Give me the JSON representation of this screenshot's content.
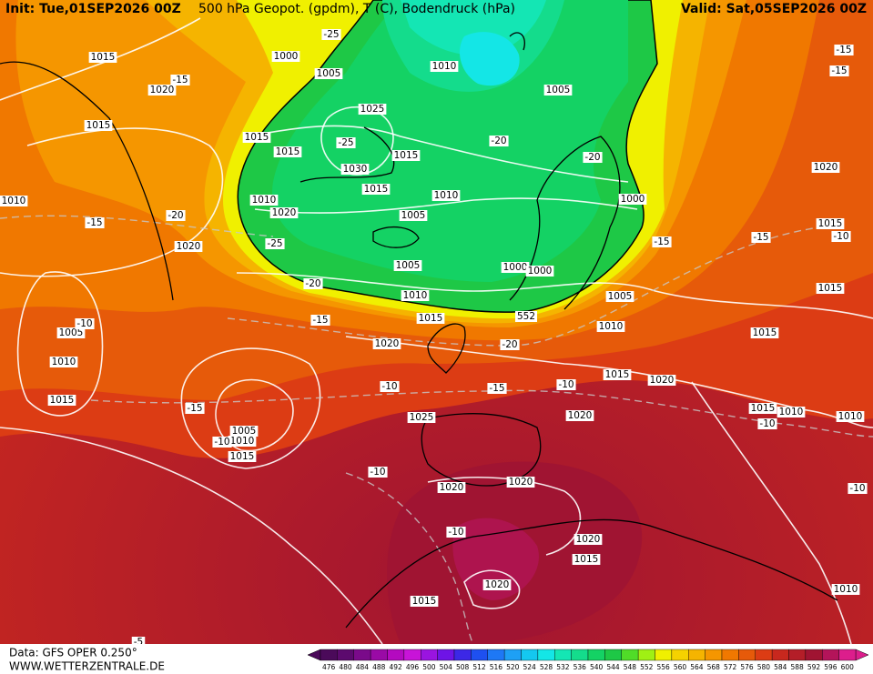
{
  "header": {
    "init": "Init: Tue,01SEP2026 00Z",
    "title": "500 hPa Geopot. (gpdm), T (C), Bodendruck (hPa)",
    "valid": "Valid: Sat,05SEP2026 00Z"
  },
  "footer": {
    "source": "Data: GFS OPER 0.250°",
    "website": "WWW.WETTERZENTRALE.DE"
  },
  "colorbar": {
    "levels": [
      476,
      480,
      484,
      488,
      492,
      496,
      500,
      504,
      508,
      512,
      516,
      520,
      524,
      528,
      532,
      536,
      540,
      544,
      548,
      552,
      556,
      560,
      564,
      568,
      572,
      576,
      580,
      584,
      588,
      592,
      596,
      600
    ],
    "colors": [
      "#4b0a5a",
      "#5c0a6e",
      "#7a0a8a",
      "#9a0aa6",
      "#b40ac0",
      "#c814d8",
      "#9a14e0",
      "#6e14e6",
      "#3c28e6",
      "#1e50f0",
      "#1e78f5",
      "#1ea0f5",
      "#14c8f0",
      "#14e6e6",
      "#14e6b4",
      "#14dc8c",
      "#14d264",
      "#1ec846",
      "#50dc28",
      "#a0f014",
      "#f0f000",
      "#f5d200",
      "#f5b400",
      "#f59600",
      "#f07800",
      "#e65a0a",
      "#dc3c14",
      "#c8281e",
      "#b41e28",
      "#a01432",
      "#b4145a",
      "#dc1e8c"
    ]
  },
  "contour_label": 552,
  "isobar_labels": [
    1015,
    1020,
    1015,
    1000,
    1005,
    1010,
    1005,
    1025,
    1015,
    1015,
    1030,
    1015,
    1015,
    1010,
    1020,
    1010,
    1005,
    1000,
    1020,
    1005,
    1000,
    1000,
    1010,
    1005,
    1015,
    1010,
    1020,
    1015,
    1015,
    1015,
    1005,
    1010,
    1020,
    1015,
    1015,
    1020,
    1015,
    1010,
    1010,
    1005,
    1010,
    1015,
    1025,
    1020,
    1020,
    1020,
    1020,
    1015,
    1020,
    1015,
    1010,
    1010
  ],
  "temperature_labels": [
    -15,
    -15,
    -25,
    -15,
    -20,
    -20,
    -15,
    -20,
    -25,
    -15,
    -15,
    -10,
    -20,
    -15,
    -10,
    -20,
    -10,
    -15,
    -10,
    -15,
    -10,
    -10,
    -10,
    -10,
    -5,
    -10,
    -25
  ]
}
